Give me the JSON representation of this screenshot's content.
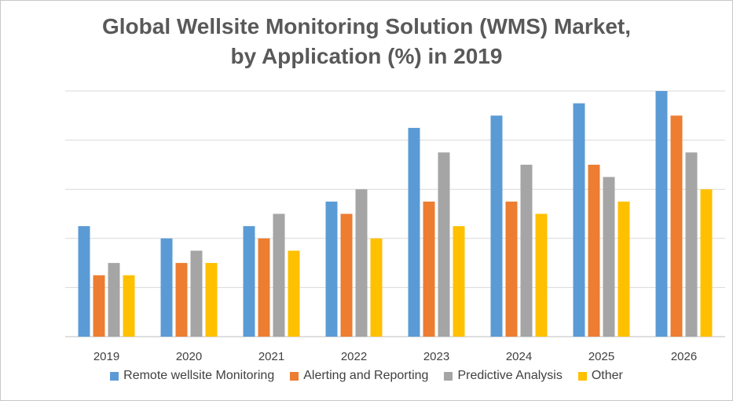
{
  "chart_data": {
    "type": "bar",
    "title_line1": "Global Wellsite Monitoring Solution (WMS) Market,",
    "title_line2": "by Application (%) in 2019",
    "xlabel": "",
    "ylabel": "",
    "ylim": [
      0,
      10
    ],
    "grid": true,
    "legend_position": "bottom",
    "categories": [
      "2019",
      "2020",
      "2021",
      "2022",
      "2023",
      "2024",
      "2025",
      "2026"
    ],
    "series": [
      {
        "name": "Remote wellsite Monitoring",
        "color": "#5b9bd5",
        "values": [
          4.5,
          4.0,
          4.5,
          5.5,
          8.5,
          9.0,
          9.5,
          10.0
        ]
      },
      {
        "name": "Alerting and Reporting",
        "color": "#ed7d31",
        "values": [
          2.5,
          3.0,
          4.0,
          5.0,
          5.5,
          5.5,
          7.0,
          9.0
        ]
      },
      {
        "name": "Predictive Analysis",
        "color": "#a5a5a5",
        "values": [
          3.0,
          3.5,
          5.0,
          6.0,
          7.5,
          7.0,
          6.5,
          7.5
        ]
      },
      {
        "name": "Other",
        "color": "#ffc000",
        "values": [
          2.5,
          3.0,
          3.5,
          4.0,
          4.5,
          5.0,
          5.5,
          6.0
        ]
      }
    ]
  }
}
